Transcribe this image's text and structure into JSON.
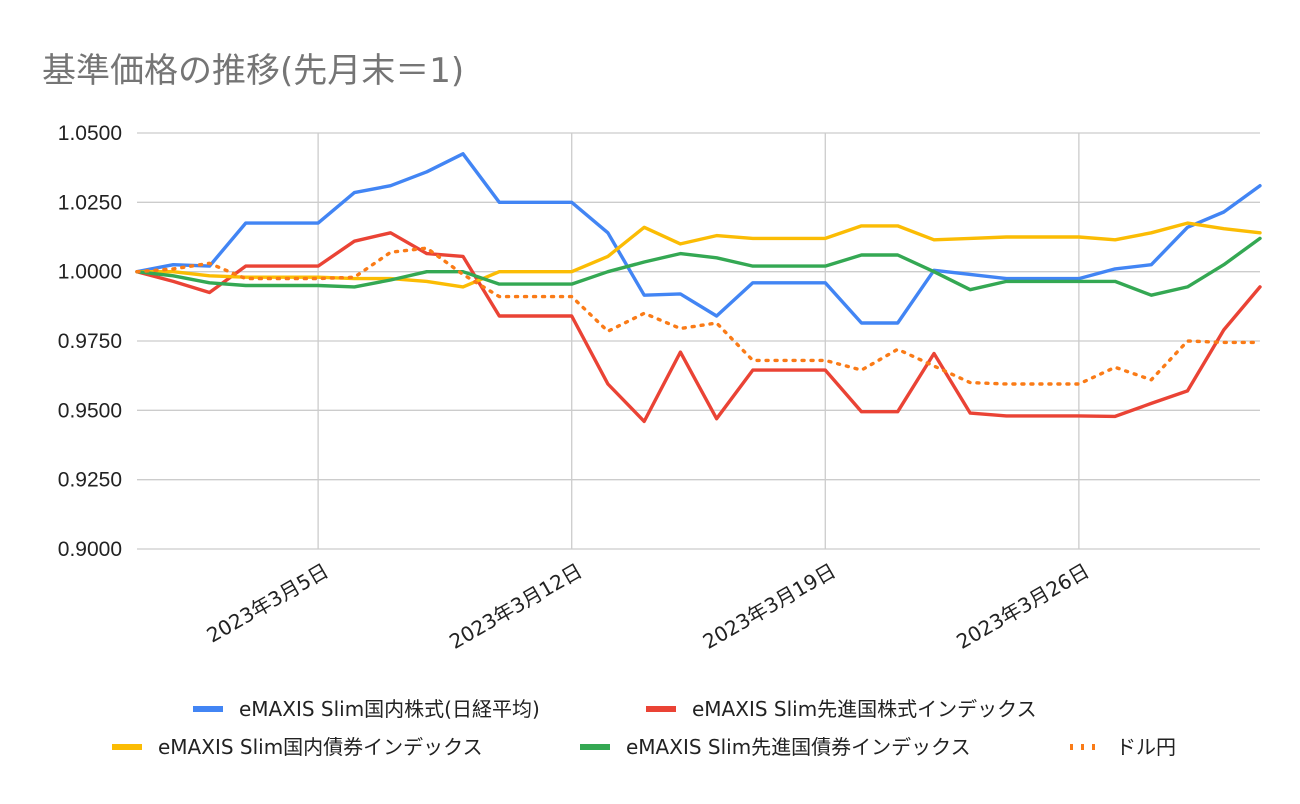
{
  "chart_data": {
    "type": "line",
    "title": "基準価格の推移(先月末＝1)",
    "xlabel": "",
    "ylabel": "",
    "ylim": [
      0.9,
      1.05
    ],
    "y_ticks": [
      "1.0500",
      "1.0250",
      "1.0000",
      "0.9750",
      "0.9500",
      "0.9250",
      "0.9000"
    ],
    "y_tick_values": [
      1.05,
      1.025,
      1.0,
      0.975,
      0.95,
      0.925,
      0.9
    ],
    "x_day_range": [
      0,
      31
    ],
    "x_ticks": [
      {
        "label": "2023年3月5日",
        "day": 5
      },
      {
        "label": "2023年3月12日",
        "day": 12
      },
      {
        "label": "2023年3月19日",
        "day": 19
      },
      {
        "label": "2023年3月26日",
        "day": 26
      }
    ],
    "x": [
      0,
      1,
      2,
      3,
      4,
      5,
      6,
      7,
      8,
      9,
      10,
      11,
      12,
      13,
      14,
      15,
      16,
      17,
      18,
      19,
      20,
      21,
      22,
      23,
      24,
      25,
      26,
      27,
      28,
      29,
      30,
      31
    ],
    "grid": true,
    "legend_position": "bottom",
    "series": [
      {
        "name": "eMAXIS Slim国内株式(日経平均)",
        "color": "#4285f4",
        "style": "solid",
        "values": [
          1.0,
          1.0025,
          1.002,
          1.0175,
          1.0175,
          1.0175,
          1.0285,
          1.031,
          1.036,
          1.0425,
          1.025,
          1.025,
          1.025,
          1.014,
          0.9915,
          0.992,
          0.984,
          0.996,
          0.996,
          0.996,
          0.9815,
          0.9815,
          1.0005,
          0.999,
          0.9975,
          0.9975,
          0.9975,
          1.001,
          1.0025,
          1.016,
          1.0215,
          1.031
        ]
      },
      {
        "name": "eMAXIS Slim先進国株式インデックス",
        "color": "#ea4335",
        "style": "solid",
        "values": [
          1.0,
          0.9965,
          0.9925,
          1.002,
          1.002,
          1.002,
          1.011,
          1.014,
          1.0065,
          1.0055,
          0.984,
          0.984,
          0.984,
          0.9595,
          0.946,
          0.971,
          0.947,
          0.9645,
          0.9645,
          0.9645,
          0.9495,
          0.9495,
          0.9705,
          0.949,
          0.948,
          0.948,
          0.948,
          0.9478,
          0.9525,
          0.957,
          0.979,
          0.9945
        ]
      },
      {
        "name": "eMAXIS Slim国内債券インデックス",
        "color": "#fbbc04",
        "style": "solid",
        "values": [
          1.0,
          1.0,
          0.9985,
          0.998,
          0.998,
          0.998,
          0.9975,
          0.9975,
          0.9965,
          0.9945,
          1.0,
          1.0,
          1.0,
          1.0055,
          1.016,
          1.01,
          1.013,
          1.012,
          1.012,
          1.012,
          1.0165,
          1.0165,
          1.0115,
          1.012,
          1.0125,
          1.0125,
          1.0125,
          1.0115,
          1.014,
          1.0175,
          1.0155,
          1.014
        ]
      },
      {
        "name": "eMAXIS Slim先進国債券インデックス",
        "color": "#34a853",
        "style": "solid",
        "values": [
          1.0,
          0.9985,
          0.996,
          0.995,
          0.995,
          0.995,
          0.9945,
          0.997,
          1.0,
          1.0,
          0.9955,
          0.9955,
          0.9955,
          1.0,
          1.0035,
          1.0065,
          1.005,
          1.002,
          1.002,
          1.002,
          1.006,
          1.006,
          1.0,
          0.9935,
          0.9965,
          0.9965,
          0.9965,
          0.9965,
          0.9915,
          0.9945,
          1.0025,
          1.012
        ]
      },
      {
        "name": "ドル円",
        "color": "#fa7b17",
        "style": "dotted",
        "values": [
          1.0,
          1.001,
          1.003,
          0.9975,
          0.9975,
          0.9975,
          0.998,
          1.007,
          1.0085,
          0.999,
          0.991,
          0.991,
          0.991,
          0.9785,
          0.985,
          0.9795,
          0.9815,
          0.968,
          0.968,
          0.968,
          0.9645,
          0.972,
          0.966,
          0.96,
          0.9595,
          0.9595,
          0.9595,
          0.9655,
          0.961,
          0.975,
          0.9745,
          0.9745
        ]
      }
    ]
  }
}
